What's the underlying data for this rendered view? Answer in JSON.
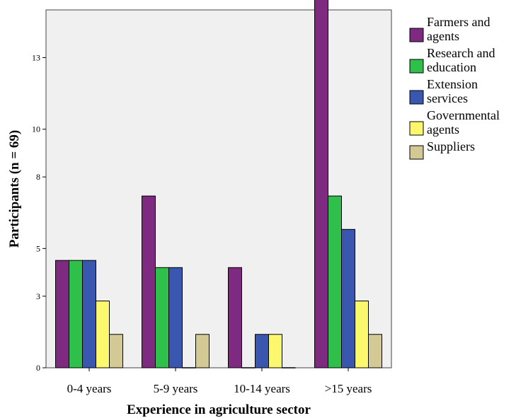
{
  "chart_data": {
    "type": "bar",
    "xlabel": "Experience in agriculture sector",
    "ylabel": "Participants (n = 69)",
    "categories": [
      "0-4 years",
      "5-9 years",
      "10-14 years",
      ">15 years"
    ],
    "y_ticks": [
      0,
      3,
      5,
      8,
      10,
      13
    ],
    "ylim": [
      0,
      15
    ],
    "grid": false,
    "legend_position": "right",
    "series": [
      {
        "name": "Farmers and agents",
        "color": "#7e2a80",
        "values": [
          4.5,
          7.2,
          4.2,
          15.8
        ]
      },
      {
        "name": "Research and education",
        "color": "#2ec04a",
        "values": [
          4.5,
          4.2,
          0,
          7.2
        ]
      },
      {
        "name": "Extension services",
        "color": "#3a57b0",
        "values": [
          4.5,
          4.2,
          1.4,
          5.8
        ]
      },
      {
        "name": "Governmental agents",
        "color": "#fbf86e",
        "values": [
          2.8,
          0,
          1.4,
          2.8
        ]
      },
      {
        "name": "Suppliers",
        "color": "#d2c995",
        "values": [
          1.4,
          1.4,
          0,
          1.4
        ]
      }
    ],
    "legend_labels": [
      [
        "Farmers and",
        "agents"
      ],
      [
        "Research and",
        "education"
      ],
      [
        "Extension",
        "services"
      ],
      [
        "Governmental",
        "agents"
      ],
      [
        "Suppliers"
      ]
    ]
  }
}
